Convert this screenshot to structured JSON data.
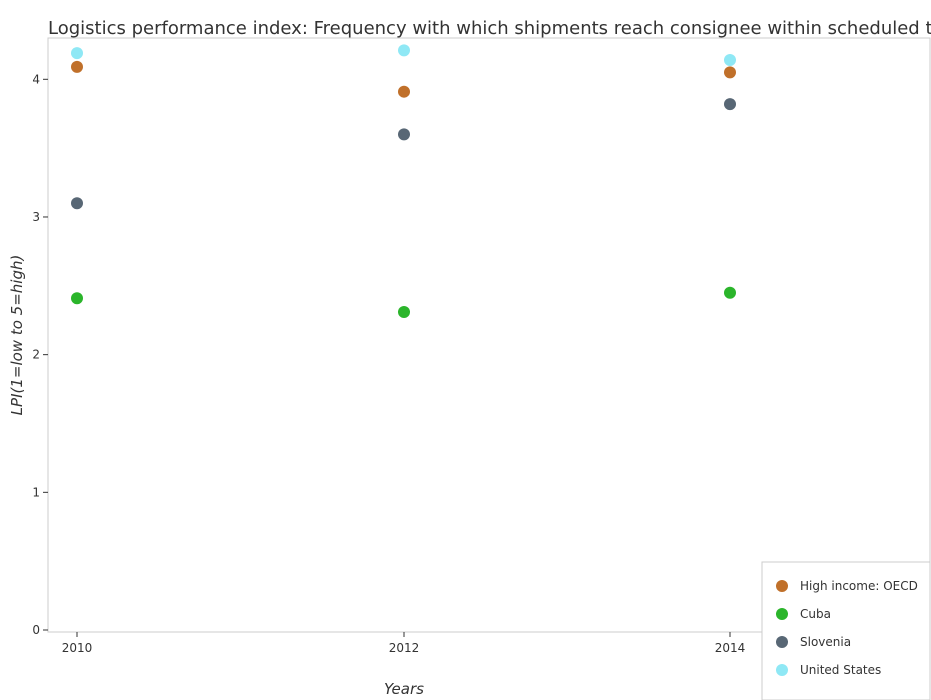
{
  "chart_data": {
    "type": "scatter",
    "title": "Logistics performance index: Frequency with which shipments reach consignee within scheduled t",
    "xlabel": "Years",
    "ylabel": "LPI(1=low to 5=high)",
    "categories": [
      "2010",
      "2012",
      "2014"
    ],
    "ylim": [
      0,
      4.3
    ],
    "yticks": [
      0,
      1,
      2,
      3,
      4
    ],
    "legend_position": "bottom-right",
    "grid": false,
    "series": [
      {
        "name": "High income: OECD",
        "color": "#c0702a",
        "values": [
          4.09,
          3.91,
          4.05
        ]
      },
      {
        "name": "Cuba",
        "color": "#2bb52b",
        "values": [
          2.41,
          2.31,
          2.45
        ]
      },
      {
        "name": "Slovenia",
        "color": "#586775",
        "values": [
          3.1,
          3.6,
          3.82
        ]
      },
      {
        "name": "United States",
        "color": "#8fe8f5",
        "values": [
          4.19,
          4.21,
          4.14
        ]
      }
    ]
  }
}
